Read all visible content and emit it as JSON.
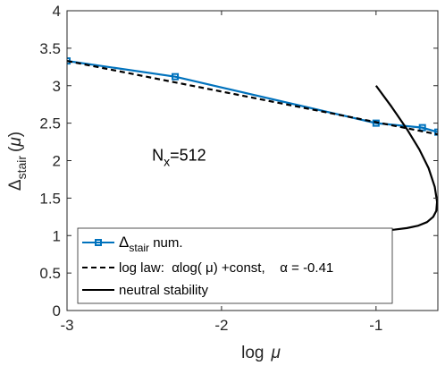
{
  "chart_data": {
    "type": "line",
    "xlabel_main": "log",
    "xlabel_var": "μ",
    "ylabel_main": "Δ",
    "ylabel_sub": "stair",
    "ylabel_paren_open": "(",
    "ylabel_var": "μ",
    "ylabel_paren_close": ")",
    "xlim": [
      -3,
      -0.6
    ],
    "ylim": [
      0,
      4
    ],
    "xticks": [
      -3,
      -2,
      -1
    ],
    "xtick_labels": [
      "-3",
      "-2",
      "-1"
    ],
    "yticks": [
      0,
      0.5,
      1,
      1.5,
      2,
      2.5,
      3,
      3.5,
      4
    ],
    "ytick_labels": [
      "0",
      "0.5",
      "1",
      "1.5",
      "2",
      "2.5",
      "3",
      "3.5",
      "4"
    ],
    "annotation": {
      "main": "N",
      "sub": "x",
      "rest": "=512",
      "x": -2.45,
      "y": 2.0
    },
    "series": [
      {
        "legend_main": "Δ",
        "legend_sub": "stair",
        "legend_rest": " num.",
        "color": "#0072bd",
        "style": "solid-square-markers",
        "x": [
          -3,
          -2.3,
          -1,
          -0.7,
          -0.6
        ],
        "y": [
          3.33,
          3.12,
          2.5,
          2.44,
          2.38
        ]
      },
      {
        "legend_text": "log law:  αlog( μ) +const,    α = -0.41",
        "color": "#000000",
        "style": "dashed",
        "x": [
          -3,
          -0.6
        ],
        "y": [
          3.33,
          2.35
        ]
      },
      {
        "legend_text": "neutral stability",
        "color": "#000000",
        "style": "solid",
        "x": [
          -1.0,
          -0.9,
          -0.8,
          -0.72,
          -0.66,
          -0.62,
          -0.605,
          -0.61,
          -0.63,
          -0.67,
          -0.73,
          -0.8,
          -0.88,
          -0.93
        ],
        "y": [
          3.0,
          2.72,
          2.42,
          2.15,
          1.9,
          1.65,
          1.45,
          1.33,
          1.25,
          1.18,
          1.13,
          1.1,
          1.08,
          1.07
        ]
      }
    ],
    "legend_location": "bottom-left",
    "grid": false,
    "box": true
  }
}
